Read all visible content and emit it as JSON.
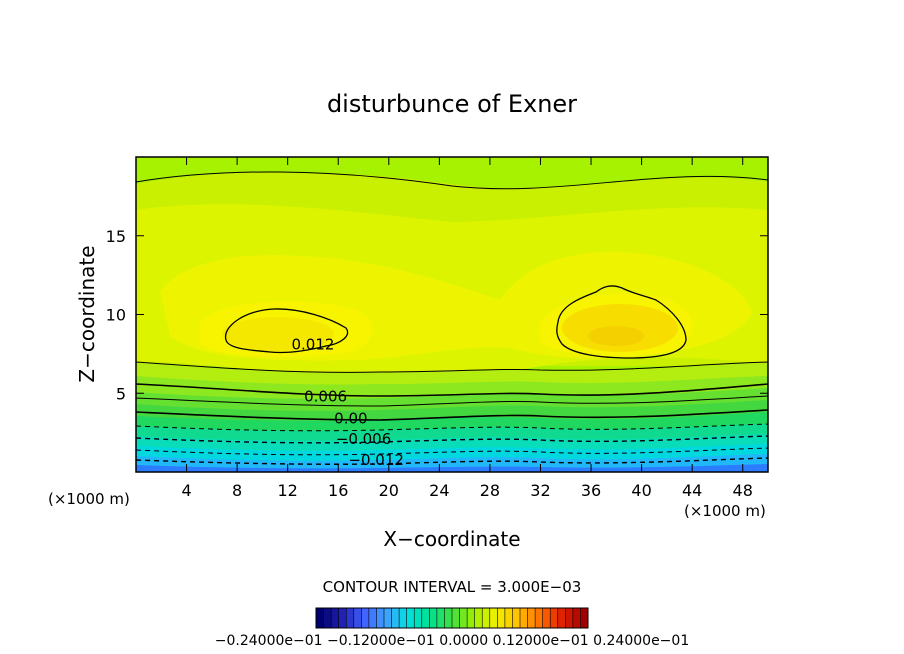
{
  "chart_data": {
    "type": "heatmap",
    "subtype": "filled-contour",
    "title": "disturbunce of Exner",
    "xlabel": "X−coordinate",
    "ylabel": "Z−coordinate",
    "x_unit_label": "(×1000 m)",
    "z_unit_label": "(×1000 m)",
    "xlim": [
      0,
      50
    ],
    "ylim": [
      0,
      20
    ],
    "x_ticks": [
      4,
      8,
      12,
      16,
      20,
      24,
      28,
      32,
      36,
      40,
      44,
      48
    ],
    "y_ticks": [
      5,
      10,
      15
    ],
    "contour_interval_text": "CONTOUR INTERVAL = 3.000E−03",
    "contour_interval": 0.003,
    "contour_labels": [
      {
        "text": "0.012",
        "x": 14,
        "z": 8.1
      },
      {
        "text": "0.006",
        "x": 15,
        "z": 4.8
      },
      {
        "text": "0.00",
        "x": 17,
        "z": 3.4
      },
      {
        "text": "−0.006",
        "x": 18,
        "z": 2.1
      },
      {
        "text": "−0.012",
        "x": 19,
        "z": 0.75
      }
    ],
    "features": [
      {
        "label": "maximum",
        "x": 10.5,
        "z": 8.7,
        "value_range": [
          0.012,
          0.015
        ]
      },
      {
        "label": "maximum",
        "x": 37.5,
        "z": 9.0,
        "value_range": [
          0.012,
          0.015
        ]
      }
    ],
    "colorbar": {
      "colors_low_to_high": [
        "#000070",
        "#2020b0",
        "#4060ff",
        "#40a0ff",
        "#00e0e0",
        "#00e090",
        "#40e040",
        "#a0f000",
        "#f0f000",
        "#ffc000",
        "#ff7000",
        "#e02000",
        "#a00000"
      ],
      "tick_text": "−0.24000e−01 −0.12000e−01 0.0000 0.12000e−01 0.24000e−01"
    }
  }
}
